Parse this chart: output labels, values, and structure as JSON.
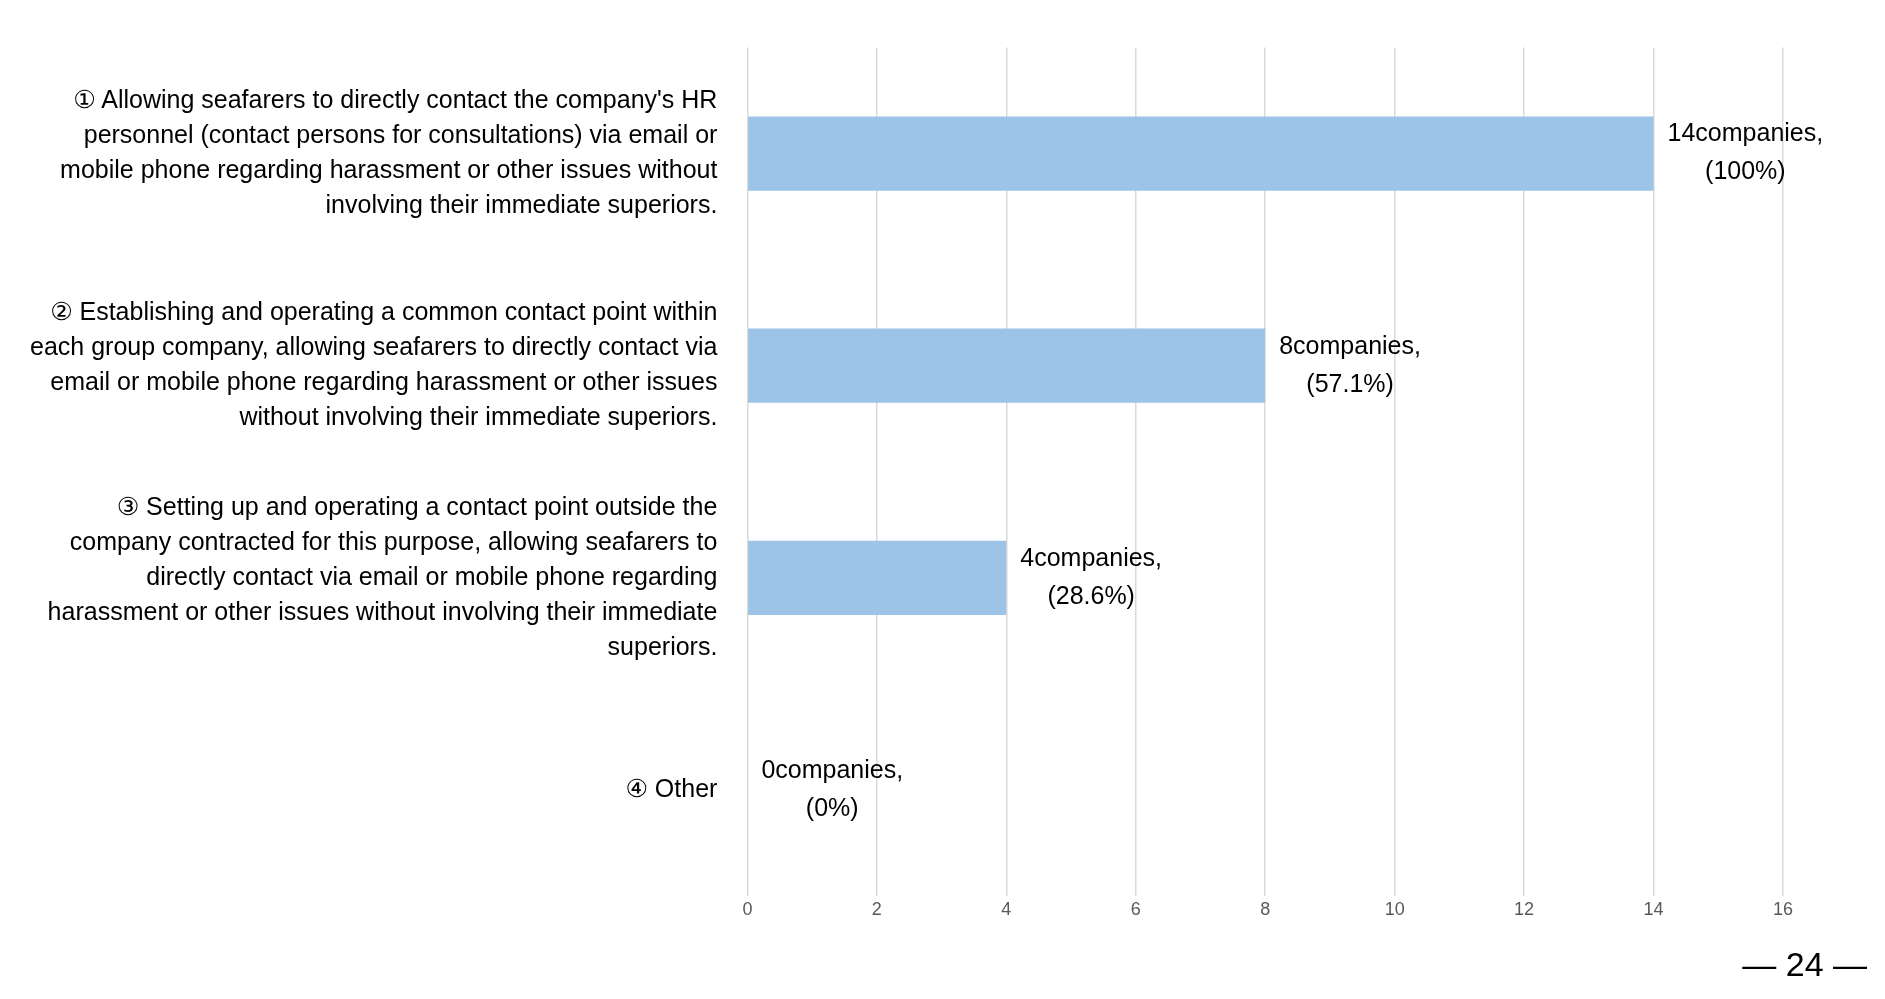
{
  "chart_data": {
    "type": "bar",
    "orientation": "horizontal",
    "categories": [
      "① Allowing seafarers to directly contact the company's HR personnel (contact persons for consultations) via email or mobile phone regarding harassment or other issues without involving their immediate superiors.",
      "② Establishing and operating a common contact point within each group company, allowing seafarers to directly contact via email or mobile phone regarding harassment or other issues without involving their immediate superiors.",
      "③ Setting up and operating a contact point outside the company contracted for this purpose, allowing seafarers to directly contact via email or mobile phone regarding harassment or other issues without involving their immediate superiors.",
      "④ Other"
    ],
    "values": [
      14,
      8,
      4,
      0
    ],
    "value_labels": [
      "14companies, (100%)",
      "8companies, (57.1%)",
      "4companies, (28.6%)",
      "0companies, (0%)"
    ],
    "color": "#9dc3e6",
    "xlim": [
      0,
      16
    ],
    "xticks": [
      0,
      2,
      4,
      6,
      8,
      10,
      12,
      14,
      16
    ],
    "grid": "x",
    "legend": false,
    "annotations": [
      "— 24 —"
    ]
  }
}
